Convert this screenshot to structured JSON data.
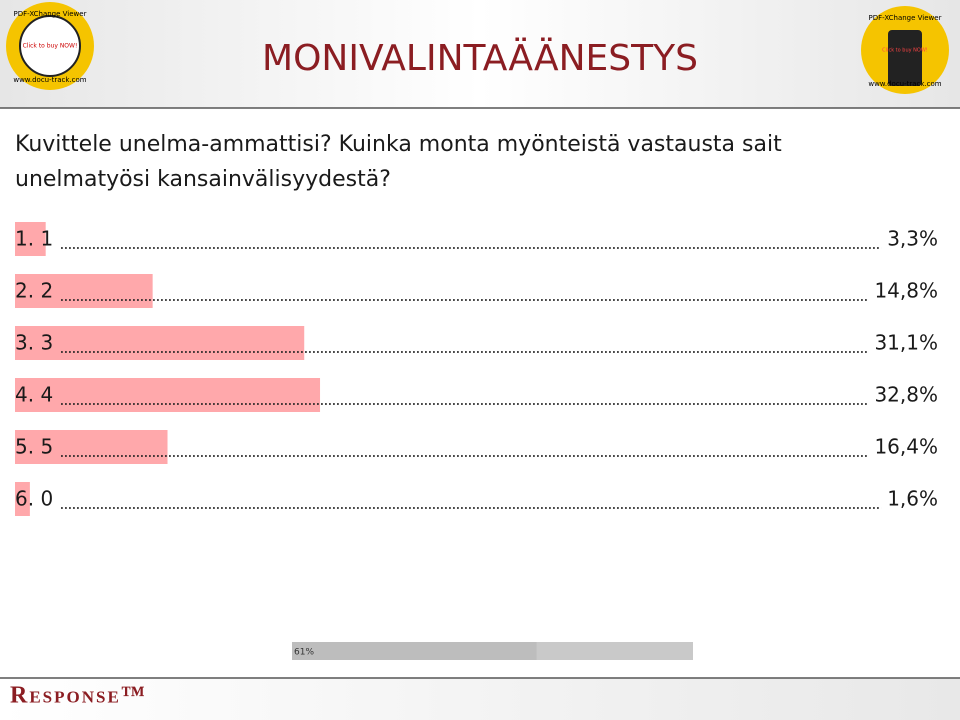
{
  "chart_data": {
    "type": "bar",
    "orientation": "horizontal",
    "title": "MONIVALINTAÄÄNESTYS",
    "subtitle": [
      "Kuvittele unelma-ammattisi? Kuinka monta myönteistä vastausta sait",
      "unelmatyösi kansainvälisyydestä?"
    ],
    "categories": [
      "1. 1",
      "2. 2",
      "3. 3",
      "4. 4",
      "5. 5",
      "6. 0"
    ],
    "values": [
      3.3,
      14.8,
      31.1,
      32.8,
      16.4,
      1.6
    ],
    "value_labels": [
      "3,3%",
      "14,8%",
      "31,1%",
      "32,8%",
      "16,4%",
      "1,6%"
    ],
    "color": "#ffa8ab",
    "xlim": [
      0,
      100
    ],
    "response_rate": {
      "value": 61,
      "label": "61%"
    }
  },
  "footer": {
    "brand": "Response™"
  },
  "badges": [
    {
      "top": "PDF-XChange Viewer",
      "middle": "Click to buy NOW!",
      "bottom": "www.docu-track.com"
    },
    {
      "top": "PDF-XChange Viewer",
      "middle": "Click to buy NOW!",
      "bottom": "www.docu-track.com"
    }
  ]
}
